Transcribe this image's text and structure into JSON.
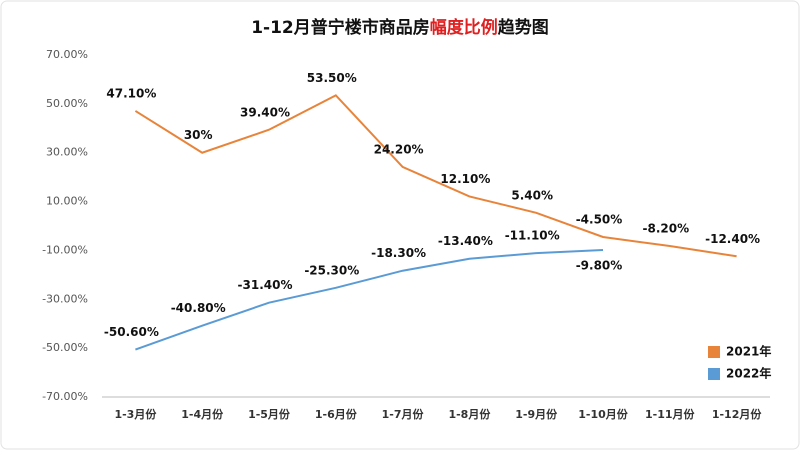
{
  "chart_data": {
    "type": "line",
    "title": [
      "1-12月普宁楼市商品房",
      "幅度比例",
      "趋势图"
    ],
    "categories": [
      "1-3月份",
      "1-4月份",
      "1-5月份",
      "1-6月份",
      "1-7月份",
      "1-8月份",
      "1-9月份",
      "1-10月份",
      "1-11月份",
      "1-12月份"
    ],
    "series": [
      {
        "name": "2021年",
        "color": "#e8843a",
        "values": [
          47.1,
          30,
          39.4,
          53.5,
          24.2,
          12.1,
          5.4,
          -4.5,
          -8.2,
          -12.4
        ],
        "value_labels": [
          "47.10%",
          "30%",
          "39.40%",
          "53.50%",
          "24.20%",
          "12.10%",
          "5.40%",
          "-4.50%",
          "-8.20%",
          "-12.40%"
        ]
      },
      {
        "name": "2022年",
        "color": "#5b9bd5",
        "values": [
          -50.6,
          -40.8,
          -31.4,
          -25.3,
          -18.3,
          -13.4,
          -11.1,
          -9.8,
          null,
          null
        ],
        "value_labels": [
          "-50.60%",
          "-40.80%",
          "-31.40%",
          "-25.30%",
          "-18.30%",
          "-13.40%",
          "-11.10%",
          "-9.80%",
          null,
          null
        ]
      }
    ],
    "ylim": [
      -70,
      70
    ],
    "yticks": [
      {
        "value": -70,
        "label": "-70.00%"
      },
      {
        "value": -50,
        "label": "-50.00%"
      },
      {
        "value": -30,
        "label": "-30.00%"
      },
      {
        "value": -10,
        "label": "-10.00%"
      },
      {
        "value": 10,
        "label": "10.00%"
      },
      {
        "value": 30,
        "label": "30.00%"
      },
      {
        "value": 50,
        "label": "50.00%"
      },
      {
        "value": 70,
        "label": "70.00%"
      }
    ],
    "grid": false,
    "legend": "lower right",
    "title_colors": [
      "#111111",
      "#e02020",
      "#111111"
    ]
  }
}
